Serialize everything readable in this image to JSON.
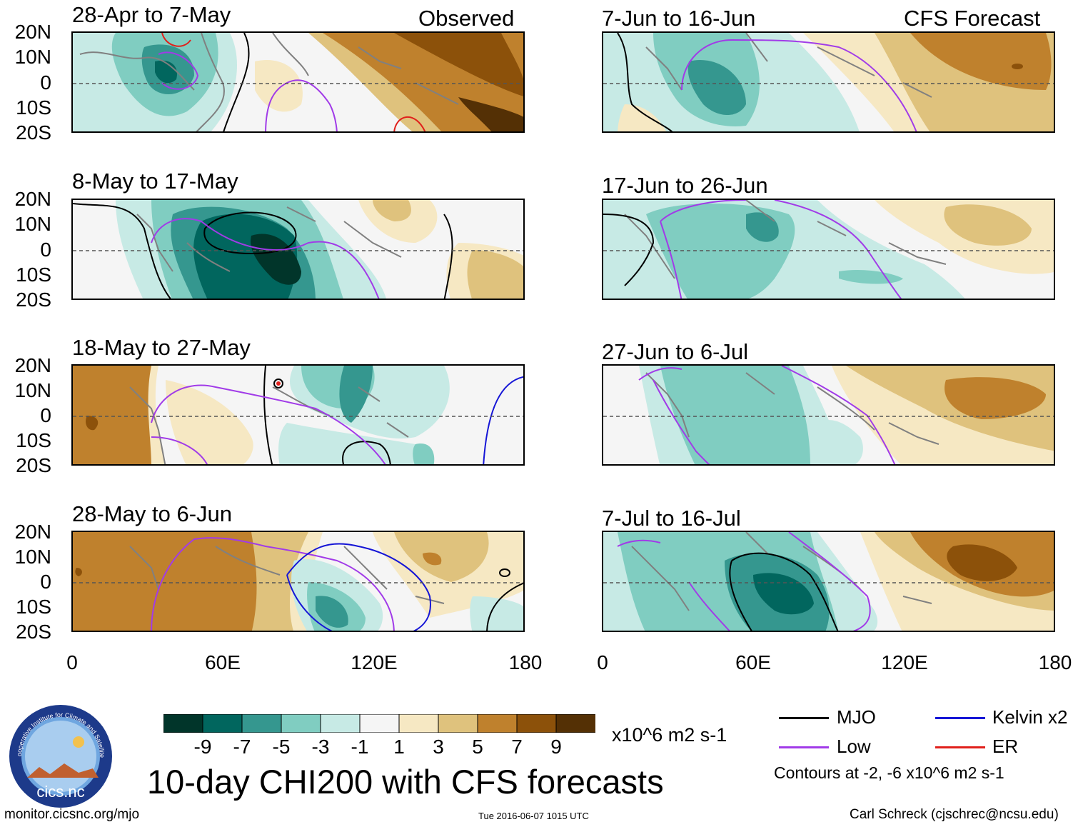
{
  "headers": {
    "observed": "Observed",
    "forecast": "CFS Forecast"
  },
  "panels": {
    "p1": {
      "title": "28-Apr to 7-May"
    },
    "p2": {
      "title": "8-May to 17-May"
    },
    "p3": {
      "title": "18-May to 27-May"
    },
    "p4": {
      "title": "28-May to 6-Jun"
    },
    "p5": {
      "title": "7-Jun to 16-Jun"
    },
    "p6": {
      "title": "17-Jun to 26-Jun"
    },
    "p7": {
      "title": "27-Jun to 6-Jul"
    },
    "p8": {
      "title": "7-Jul to 16-Jul"
    }
  },
  "lat_labels": [
    "20N",
    "10N",
    "0",
    "10S",
    "20S"
  ],
  "lon_labels": [
    "0",
    "60E",
    "120E",
    "180"
  ],
  "colorbar": {
    "colors": [
      "#01352a",
      "#01665e",
      "#35978f",
      "#80cdc1",
      "#c7eae5",
      "#f5f5f5",
      "#f6e8c3",
      "#dfc27d",
      "#bf812d",
      "#8c510a",
      "#543005"
    ],
    "labels": [
      "-9",
      "-7",
      "-5",
      "-3",
      "-1",
      "1",
      "3",
      "5",
      "7",
      "9"
    ],
    "units": "x10^6 m2 s-1"
  },
  "legend": {
    "mjo": {
      "label": "MJO",
      "color": "#000000"
    },
    "kelvin": {
      "label": "Kelvin x2",
      "color": "#1515d6"
    },
    "low": {
      "label": "Low",
      "color": "#a13be8"
    },
    "er": {
      "label": "ER",
      "color": "#e0201b"
    },
    "contours_note": "Contours at -2, -6 x10^6 m2 s-1"
  },
  "main_title": "10-day CHI200 with CFS forecasts",
  "logo_text": "cics.nc",
  "logo_ring_text": "Cooperative Institute for Climate and Satellites",
  "footer": {
    "url": "monitor.cicsnc.org/mjo",
    "timestamp": "Tue 2016-06-07 1015 UTC",
    "author": "Carl Schreck (cjschrec@ncsu.edu)"
  }
}
